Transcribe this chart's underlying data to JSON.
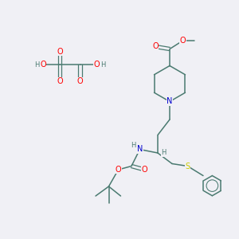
{
  "background_color": "#f0f0f5",
  "figsize": [
    3.0,
    3.0
  ],
  "dpi": 100,
  "atom_colors": {
    "O": "#ff0000",
    "N": "#0000cc",
    "S": "#cccc00",
    "C": "#4a7a70",
    "H": "#4a7a70"
  },
  "bond_color": "#4a7a70",
  "font_size_atoms": 7.0,
  "font_size_H": 6.0
}
